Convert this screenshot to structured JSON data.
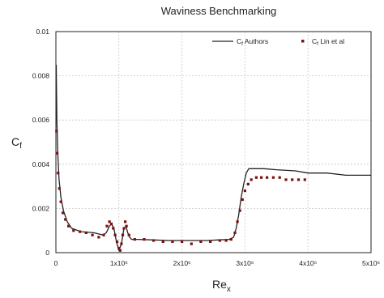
{
  "chart_data": {
    "type": "line",
    "title": "Waviness Benchmarking",
    "xlabel": "Re",
    "xlabel_sub": "x",
    "ylabel": "C",
    "ylabel_sub": "f",
    "xlim": [
      0,
      5000000
    ],
    "ylim": [
      0,
      0.01
    ],
    "grid": true,
    "legend_position": "top-right",
    "x_ticks": [
      {
        "value": 0,
        "label": "0"
      },
      {
        "value": 1000000,
        "label": "1x10⁶"
      },
      {
        "value": 2000000,
        "label": "2x10⁶"
      },
      {
        "value": 3000000,
        "label": "3x10⁶"
      },
      {
        "value": 4000000,
        "label": "4x10⁶"
      },
      {
        "value": 5000000,
        "label": "5x10⁶"
      }
    ],
    "y_ticks": [
      {
        "value": 0,
        "label": "0"
      },
      {
        "value": 0.002,
        "label": "0.002"
      },
      {
        "value": 0.004,
        "label": "0.004"
      },
      {
        "value": 0.006,
        "label": "0.006"
      },
      {
        "value": 0.008,
        "label": "0.008"
      },
      {
        "value": 0.01,
        "label": "0.01"
      }
    ],
    "series": [
      {
        "name": "Cf Authors",
        "legend_main": "C",
        "legend_sub": "f",
        "legend_rest": " Authors",
        "style": "line",
        "color": "#222222",
        "x": [
          5000,
          15000,
          30000,
          50000,
          80000,
          120000,
          180000,
          250000,
          400000,
          600000,
          750000,
          800000,
          850000,
          880000,
          920000,
          960000,
          1000000,
          1040000,
          1080000,
          1110000,
          1140000,
          1170000,
          1200000,
          1300000,
          1500000,
          1800000,
          2100000,
          2400000,
          2600000,
          2750000,
          2820000,
          2860000,
          2900000,
          2940000,
          2980000,
          3020000,
          3060000,
          3100000,
          3200000,
          3300000,
          3500000,
          3800000,
          4000000,
          4300000,
          4600000,
          4800000,
          5000000
        ],
        "y": [
          0.0085,
          0.006,
          0.0045,
          0.0033,
          0.0025,
          0.0019,
          0.0014,
          0.0011,
          0.00095,
          0.0009,
          0.0008,
          0.0009,
          0.0012,
          0.0013,
          0.0011,
          0.0005,
          0.0001,
          0.0004,
          0.0011,
          0.0012,
          0.0009,
          0.0007,
          0.0006,
          0.0006,
          0.00058,
          0.00055,
          0.00055,
          0.00055,
          0.00058,
          0.0006,
          0.0007,
          0.0011,
          0.0017,
          0.0025,
          0.0031,
          0.0036,
          0.0038,
          0.0038,
          0.0038,
          0.0038,
          0.00375,
          0.0037,
          0.0036,
          0.0036,
          0.0035,
          0.0035,
          0.0035
        ]
      },
      {
        "name": "Cf Lin et al",
        "legend_main": "C",
        "legend_sub": "f",
        "legend_rest": " Lin et al",
        "style": "markers",
        "color": "#7a1010",
        "x": [
          10000,
          20000,
          35000,
          55000,
          80000,
          110000,
          150000,
          200000,
          280000,
          380000,
          480000,
          580000,
          680000,
          760000,
          810000,
          850000,
          880000,
          910000,
          940000,
          970000,
          1000000,
          1020000,
          1040000,
          1060000,
          1080000,
          1100000,
          1120000,
          1160000,
          1250000,
          1400000,
          1550000,
          1700000,
          1850000,
          2000000,
          2150000,
          2300000,
          2450000,
          2600000,
          2700000,
          2780000,
          2840000,
          2880000,
          2920000,
          2960000,
          3000000,
          3050000,
          3100000,
          3180000,
          3260000,
          3350000,
          3450000,
          3550000,
          3650000,
          3750000,
          3850000,
          3950000
        ],
        "y": [
          0.0055,
          0.0045,
          0.0036,
          0.0029,
          0.0023,
          0.0018,
          0.0015,
          0.0012,
          0.001,
          0.00095,
          0.0009,
          0.0008,
          0.0007,
          0.0008,
          0.0012,
          0.0014,
          0.0013,
          0.0011,
          0.0008,
          0.0005,
          0.0002,
          0.0001,
          0.0004,
          0.0008,
          0.0011,
          0.0014,
          0.0012,
          0.0008,
          0.0006,
          0.0006,
          0.00055,
          0.0005,
          0.0005,
          0.0005,
          0.0004,
          0.0005,
          0.0005,
          0.00055,
          0.00055,
          0.0006,
          0.0009,
          0.0014,
          0.0019,
          0.0024,
          0.0028,
          0.0031,
          0.0033,
          0.0034,
          0.0034,
          0.0034,
          0.0034,
          0.0034,
          0.0033,
          0.0033,
          0.0033,
          0.0033
        ]
      }
    ]
  }
}
